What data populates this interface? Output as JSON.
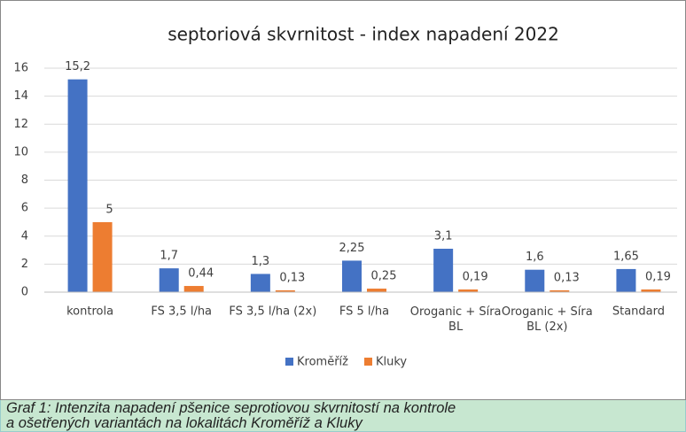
{
  "chart_data": {
    "type": "bar",
    "title": "septoriová skvrnitost - index napadení 2022",
    "categories": [
      "kontrola",
      "FS 3,5 l/ha",
      "FS 3,5 l/ha (2x)",
      "FS 5 l/ha",
      "Oroganic + Síra BL",
      "Oroganic + Síra BL (2x)",
      "Standard"
    ],
    "series": [
      {
        "name": "Kroměříž",
        "color": "#4472c4",
        "values": [
          15.2,
          1.7,
          1.3,
          2.25,
          3.1,
          1.6,
          1.65
        ],
        "value_labels": [
          "15,2",
          "1,7",
          "1,3",
          "2,25",
          "3,1",
          "1,6",
          "1,65"
        ]
      },
      {
        "name": "Kluky",
        "color": "#ed7d31",
        "values": [
          5,
          0.44,
          0.13,
          0.25,
          0.19,
          0.13,
          0.19
        ],
        "value_labels": [
          "5",
          "0,44",
          "0,13",
          "0,25",
          "0,19",
          "0,13",
          "0,19"
        ]
      }
    ],
    "ylim": [
      0,
      16
    ],
    "yticks": [
      0,
      2,
      4,
      6,
      8,
      10,
      12,
      14,
      16
    ],
    "grid": true,
    "legend": "bottom"
  },
  "caption": [
    "Graf 1: Intenzita napadení pšenice seprotiovou skvrnitostí na kontrole",
    "a ošetřených variantách na lokalitách Kroměříž a Kluky"
  ]
}
